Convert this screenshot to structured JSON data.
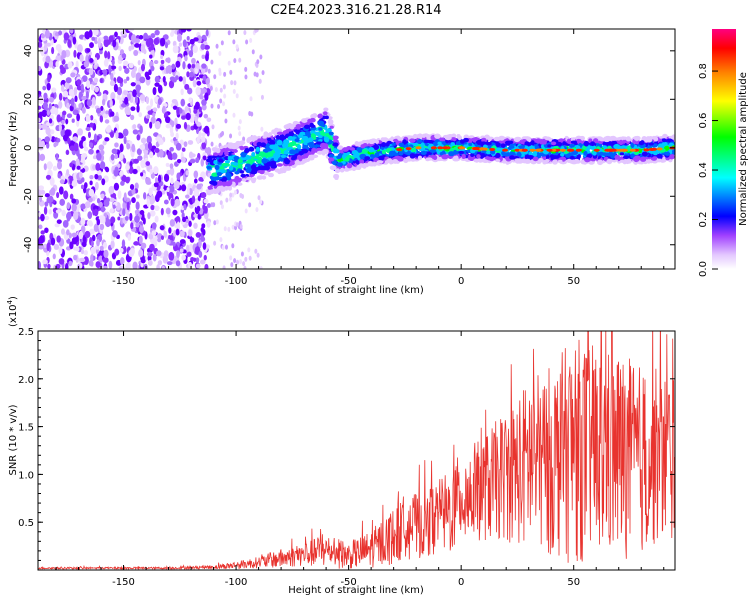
{
  "title": "C2E4.2023.316.21.28.R14",
  "chart_data": [
    {
      "type": "heatmap",
      "title": "C2E4.2023.316.21.28.R14",
      "xlabel": "Height of straight line (km)",
      "ylabel": "Frequency (Hz)",
      "xlim": [
        -188,
        95
      ],
      "ylim": [
        -50,
        49
      ],
      "xticks": [
        -150,
        -100,
        -50,
        0,
        50
      ],
      "yticks": [
        40,
        20,
        0,
        -20,
        -40
      ],
      "xtick_labels": [
        "-150",
        "-100",
        "-50",
        "0",
        "50"
      ],
      "ytick_labels": [
        "40",
        "20",
        "0",
        "-20",
        "-40"
      ],
      "colorbar": {
        "label": "Normalized spectral amplitude",
        "range": [
          0.0,
          0.97
        ],
        "ticks": [
          0.0,
          0.2,
          0.4,
          0.6,
          0.8
        ],
        "tick_labels": [
          "0.0",
          "0.2",
          "0.4",
          "0.6",
          "0.8"
        ],
        "colors": [
          "#ffffff",
          "#e3c6ff",
          "#8800ff",
          "#0000ff",
          "#00ffff",
          "#00ff00",
          "#ffff00",
          "#ff8000",
          "#ff0000",
          "#ff0080"
        ]
      },
      "ridge": {
        "x": [
          -112,
          -100,
          -90,
          -80,
          -70,
          -60,
          -55,
          -50,
          -40,
          -30,
          -20,
          -10,
          0,
          20,
          40,
          60,
          80,
          95
        ],
        "frequency": [
          -10,
          -7,
          -4,
          -1,
          3,
          7,
          -5,
          -4,
          -2,
          -1,
          0,
          0,
          0,
          -1,
          -1,
          -1,
          -1,
          0
        ]
      }
    },
    {
      "type": "line",
      "xlabel": "Height of straight line (km)",
      "ylabel": "SNR (10 * v/v)",
      "y_multiplier": "(x10",
      "y_multiplier_exp": "4",
      "y_multiplier_close": ")",
      "xlim": [
        -188,
        95
      ],
      "ylim": [
        0,
        2.5
      ],
      "xticks": [
        -150,
        -100,
        -50,
        0,
        50
      ],
      "yticks": [
        0.5,
        1.0,
        1.5,
        2.0,
        2.5
      ],
      "xtick_labels": [
        "-150",
        "-100",
        "-50",
        "0",
        "50"
      ],
      "ytick_labels": [
        "0.5",
        "1.0",
        "1.5",
        "2.0",
        "2.5"
      ],
      "color": "#e8332e",
      "envelope": {
        "x": [
          -188,
          -130,
          -110,
          -100,
          -90,
          -80,
          -70,
          -60,
          -50,
          -40,
          -30,
          -25,
          -20,
          -15,
          -10,
          -5,
          0,
          10,
          20,
          30,
          40,
          50,
          60,
          70,
          80,
          90,
          95
        ],
        "mean": [
          0.02,
          0.02,
          0.03,
          0.05,
          0.08,
          0.12,
          0.16,
          0.2,
          0.15,
          0.22,
          0.35,
          0.45,
          0.45,
          0.5,
          0.55,
          0.6,
          0.75,
          0.85,
          1.0,
          1.1,
          1.15,
          1.25,
          1.25,
          1.2,
          1.15,
          1.2,
          1.2
        ],
        "amp": [
          0.01,
          0.01,
          0.02,
          0.04,
          0.06,
          0.1,
          0.12,
          0.18,
          0.14,
          0.2,
          0.3,
          0.35,
          0.35,
          0.35,
          0.4,
          0.45,
          0.5,
          0.55,
          0.7,
          0.9,
          1.0,
          1.2,
          1.1,
          1.1,
          1.0,
          0.9,
          0.9
        ]
      }
    }
  ]
}
